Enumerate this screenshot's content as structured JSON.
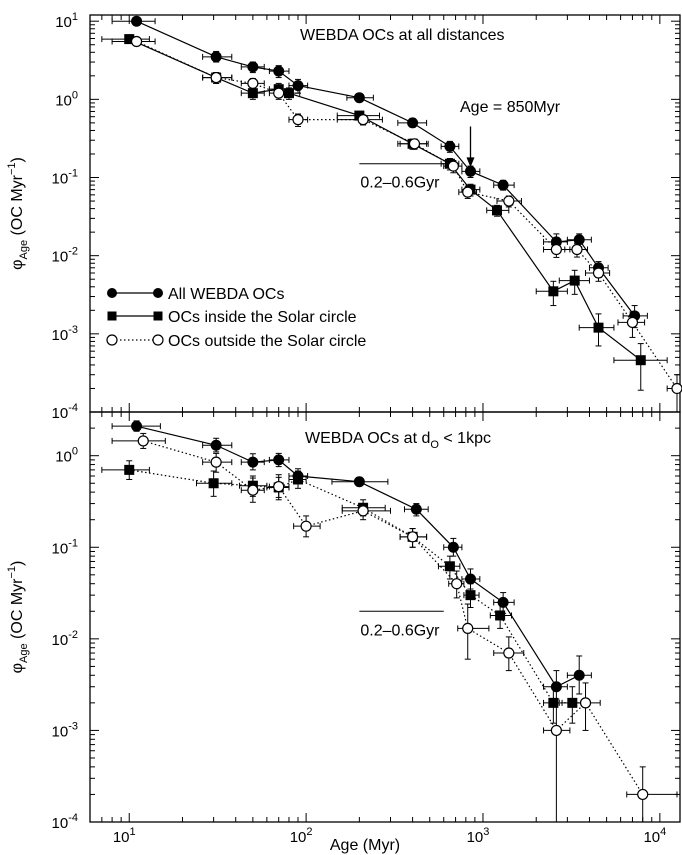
{
  "chart_data": [
    {
      "type": "scatter",
      "panel": "top",
      "xscale": "log",
      "yscale": "log",
      "xlim": [
        6,
        13000
      ],
      "ylim": [
        0.0001,
        12
      ],
      "annotation": "WEBDA OCs at all distances",
      "age_label": "Age = 850Myr",
      "bin_label": "0.2–0.6Gyr",
      "bin_range": [
        200,
        600
      ],
      "bin_y": 0.15,
      "arrow": {
        "x": 850,
        "from_y": 0.45,
        "to_y": 0.135
      },
      "ylabel": {
        "main": "φ",
        "sub": "Age",
        "unit": " (OC Myr",
        "sup": "−1",
        "close": ")"
      },
      "legend": [
        "All WEBDA OCs",
        "OCs inside the Solar circle",
        "OCs outside the Solar circle"
      ],
      "series": [
        {
          "name": "All WEBDA OCs",
          "marker": "filled-circle",
          "line": "solid",
          "x": [
            11,
            31,
            50,
            70,
            90,
            200,
            400,
            650,
            850,
            1300,
            2600,
            3500,
            4500,
            7200
          ],
          "y": [
            10.0,
            3.5,
            2.6,
            2.3,
            1.5,
            1.05,
            0.5,
            0.25,
            0.12,
            0.08,
            0.015,
            0.016,
            0.007,
            0.0017
          ],
          "xerr": [
            [
              8,
              14
            ],
            [
              26,
              38
            ],
            [
              43,
              58
            ],
            [
              62,
              80
            ],
            [
              80,
              102
            ],
            [
              170,
              240
            ],
            [
              330,
              480
            ],
            [
              580,
              730
            ],
            [
              760,
              960
            ],
            [
              1150,
              1500
            ],
            [
              2200,
              3000
            ],
            [
              3000,
              4100
            ],
            [
              4000,
              5100
            ],
            [
              6200,
              8500
            ]
          ],
          "yerr": [
            [
              9.2,
              10.8
            ],
            [
              3.0,
              4.1
            ],
            [
              2.2,
              3.0
            ],
            [
              1.9,
              2.7
            ],
            [
              1.2,
              1.8
            ],
            [
              0.93,
              1.18
            ],
            [
              0.44,
              0.57
            ],
            [
              0.21,
              0.29
            ],
            [
              0.1,
              0.14
            ],
            [
              0.069,
              0.092
            ],
            [
              0.012,
              0.019
            ],
            [
              0.013,
              0.019
            ],
            [
              0.0056,
              0.0084
            ],
            [
              0.0012,
              0.0023
            ]
          ]
        },
        {
          "name": "OCs inside the Solar circle",
          "marker": "filled-square",
          "line": "solid",
          "x": [
            10,
            31,
            50,
            70,
            80,
            200,
            400,
            650,
            850,
            1200,
            2500,
            3300,
            4500,
            7800
          ],
          "y": [
            5.9,
            1.9,
            1.2,
            1.35,
            1.2,
            0.62,
            0.27,
            0.15,
            0.07,
            0.038,
            0.0035,
            0.0048,
            0.0012,
            0.00046
          ],
          "xerr": [
            [
              7,
              13
            ],
            [
              26,
              38
            ],
            [
              43,
              58
            ],
            [
              62,
              80
            ],
            [
              72,
              92
            ],
            [
              150,
              260
            ],
            [
              330,
              480
            ],
            [
              580,
              730
            ],
            [
              760,
              960
            ],
            [
              1050,
              1400
            ],
            [
              2000,
              3000
            ],
            [
              2700,
              4000
            ],
            [
              3500,
              5500
            ],
            [
              5500,
              11000
            ]
          ],
          "yerr": [
            [
              5.3,
              6.5
            ],
            [
              1.6,
              2.2
            ],
            [
              1.0,
              1.4
            ],
            [
              1.1,
              1.6
            ],
            [
              1.0,
              1.4
            ],
            [
              0.55,
              0.7
            ],
            [
              0.23,
              0.31
            ],
            [
              0.125,
              0.175
            ],
            [
              0.058,
              0.082
            ],
            [
              0.032,
              0.044
            ],
            [
              0.0023,
              0.0047
            ],
            [
              0.0032,
              0.0065
            ],
            [
              0.0007,
              0.0018
            ],
            [
              0.00019,
              0.00075
            ]
          ]
        },
        {
          "name": "OCs outside the Solar circle",
          "marker": "open-circle",
          "line": "dotted",
          "x": [
            11,
            31,
            50,
            70,
            90,
            210,
            410,
            680,
            820,
            1400,
            2600,
            3400,
            4500,
            7000,
            12500
          ],
          "y": [
            5.5,
            1.9,
            1.6,
            1.2,
            0.55,
            0.55,
            0.27,
            0.14,
            0.065,
            0.05,
            0.012,
            0.012,
            0.006,
            0.0014,
            0.0002
          ],
          "xerr": [
            [
              8,
              14
            ],
            [
              26,
              38
            ],
            [
              43,
              58
            ],
            [
              62,
              80
            ],
            [
              80,
              102
            ],
            [
              150,
              270
            ],
            [
              340,
              490
            ],
            [
              600,
              760
            ],
            [
              730,
              920
            ],
            [
              1200,
              1650
            ],
            [
              2200,
              3100
            ],
            [
              2900,
              3900
            ],
            [
              3800,
              5200
            ],
            [
              5800,
              8200
            ],
            [
              11000,
              13000
            ]
          ],
          "yerr": [
            [
              4.9,
              6.1
            ],
            [
              1.6,
              2.2
            ],
            [
              1.35,
              1.85
            ],
            [
              1.0,
              1.4
            ],
            [
              0.45,
              0.65
            ],
            [
              0.47,
              0.63
            ],
            [
              0.23,
              0.31
            ],
            [
              0.115,
              0.165
            ],
            [
              0.054,
              0.076
            ],
            [
              0.042,
              0.058
            ],
            [
              0.0095,
              0.0145
            ],
            [
              0.0096,
              0.0144
            ],
            [
              0.0047,
              0.0073
            ],
            [
              0.0009,
              0.0019
            ],
            [
              0.0001,
              0.0003
            ]
          ]
        }
      ]
    },
    {
      "type": "scatter",
      "panel": "bottom",
      "xscale": "log",
      "yscale": "log",
      "xlim": [
        6,
        13000
      ],
      "ylim": [
        0.0001,
        3
      ],
      "annotation": {
        "main": "WEBDA OCs at d",
        "sub": "O",
        "rest": " < 1kpc"
      },
      "bin_label": "0.2–0.6Gyr",
      "bin_range": [
        200,
        600
      ],
      "bin_y": 0.02,
      "xlabel": "Age (Myr)",
      "ylabel": {
        "main": "φ",
        "sub": "Age",
        "unit": " (OC Myr",
        "sup": "−1",
        "close": ")"
      },
      "series": [
        {
          "name": "All WEBDA OCs",
          "marker": "filled-circle",
          "line": "solid",
          "x": [
            11,
            31,
            50,
            70,
            90,
            200,
            420,
            680,
            850,
            1300,
            2600,
            3500
          ],
          "y": [
            2.1,
            1.3,
            0.85,
            0.9,
            0.6,
            0.52,
            0.26,
            0.1,
            0.045,
            0.025,
            0.003,
            0.004
          ],
          "xerr": [
            [
              8,
              15
            ],
            [
              26,
              38
            ],
            [
              43,
              58
            ],
            [
              62,
              80
            ],
            [
              80,
              102
            ],
            [
              140,
              290
            ],
            [
              360,
              490
            ],
            [
              600,
              760
            ],
            [
              760,
              960
            ],
            [
              1150,
              1500
            ],
            [
              2200,
              3000
            ],
            [
              3000,
              4100
            ]
          ],
          "yerr": [
            [
              1.85,
              2.4
            ],
            [
              1.1,
              1.55
            ],
            [
              0.7,
              1.05
            ],
            [
              0.76,
              1.06
            ],
            [
              0.5,
              0.72
            ],
            [
              0.47,
              0.58
            ],
            [
              0.22,
              0.3
            ],
            [
              0.08,
              0.125
            ],
            [
              0.035,
              0.058
            ],
            [
              0.019,
              0.032
            ],
            [
              0.002,
              0.0045
            ],
            [
              0.0025,
              0.0065
            ]
          ]
        },
        {
          "name": "OCs inside the Solar circle",
          "marker": "filled-square",
          "line": "dotted",
          "x": [
            10,
            30,
            50,
            70,
            90,
            210,
            400,
            650,
            850,
            1250,
            2500,
            3200
          ],
          "y": [
            0.7,
            0.5,
            0.47,
            0.45,
            0.55,
            0.27,
            0.13,
            0.062,
            0.03,
            0.018,
            0.002,
            0.002
          ],
          "xerr": [
            [
              7,
              13
            ],
            [
              24,
              38
            ],
            [
              42,
              60
            ],
            [
              60,
              80
            ],
            [
              80,
              100
            ],
            [
              160,
              280
            ],
            [
              340,
              480
            ],
            [
              560,
              740
            ],
            [
              780,
              950
            ],
            [
              1100,
              1450
            ],
            [
              2200,
              2700
            ],
            [
              2800,
              3700
            ]
          ],
          "yerr": [
            [
              0.55,
              0.88
            ],
            [
              0.36,
              0.68
            ],
            [
              0.36,
              0.6
            ],
            [
              0.35,
              0.58
            ],
            [
              0.44,
              0.68
            ],
            [
              0.22,
              0.33
            ],
            [
              0.1,
              0.16
            ],
            [
              0.045,
              0.08
            ],
            [
              0.022,
              0.04
            ],
            [
              0.013,
              0.025
            ],
            [
              0.0012,
              0.003
            ],
            [
              0.0012,
              0.003
            ]
          ]
        },
        {
          "name": "OCs outside the Solar circle",
          "marker": "open-circle",
          "line": "dotted",
          "x": [
            12,
            31,
            50,
            70,
            100,
            210,
            400,
            710,
            820,
            1400,
            2600,
            3800,
            8000
          ],
          "y": [
            1.45,
            0.85,
            0.42,
            0.46,
            0.17,
            0.25,
            0.13,
            0.04,
            0.013,
            0.007,
            0.001,
            0.002,
            0.0002
          ],
          "xerr": [
            [
              8,
              16
            ],
            [
              26,
              38
            ],
            [
              43,
              58
            ],
            [
              62,
              80
            ],
            [
              85,
              120
            ],
            [
              160,
              300
            ],
            [
              340,
              480
            ],
            [
              640,
              780
            ],
            [
              720,
              1080
            ],
            [
              1150,
              1700
            ],
            [
              2200,
              3100
            ],
            [
              3200,
              4600
            ],
            [
              6500,
              12500
            ]
          ],
          "yerr": [
            [
              1.2,
              1.75
            ],
            [
              0.66,
              1.06
            ],
            [
              0.31,
              0.57
            ],
            [
              0.33,
              0.62
            ],
            [
              0.13,
              0.22
            ],
            [
              0.2,
              0.3
            ],
            [
              0.1,
              0.16
            ],
            [
              0.028,
              0.055
            ],
            [
              0.006,
              0.024
            ],
            [
              0.0045,
              0.0105
            ],
            [
              5e-05,
              0.0022
            ],
            [
              0.001,
              0.0033
            ],
            [
              8e-05,
              0.0004
            ]
          ]
        }
      ]
    }
  ]
}
